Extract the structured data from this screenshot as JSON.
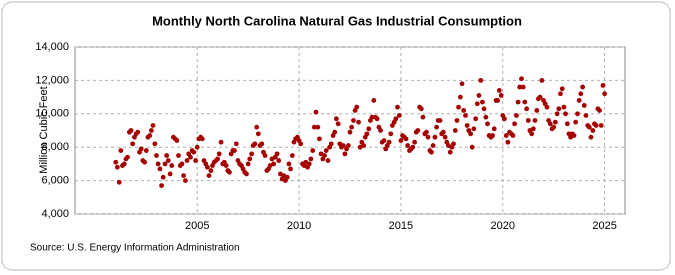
{
  "chart_data": {
    "type": "scatter",
    "title": "Monthly North Carolina Natural Gas Industrial Consumption",
    "y_label": "Million Cubic Feet",
    "source": "Source: U.S. Energy Information Administration",
    "color": "#a50000",
    "grid": true,
    "xlim": [
      1999,
      2026
    ],
    "xticks": [
      2005,
      2010,
      2015,
      2020,
      2025
    ],
    "ylim": [
      4000,
      14000
    ],
    "yticks": [
      {
        "value": 4000,
        "label": "4,000"
      },
      {
        "value": 6000,
        "label": "6,000"
      },
      {
        "value": 8000,
        "label": "8,000"
      },
      {
        "value": 10000,
        "label": "10,000"
      },
      {
        "value": 12000,
        "label": "12,000"
      },
      {
        "value": 14000,
        "label": "14,000"
      }
    ],
    "x": [
      2001,
      2001.08,
      2001.17,
      2001.25,
      2001.33,
      2001.42,
      2001.5,
      2001.58,
      2001.67,
      2001.75,
      2001.83,
      2001.92,
      2002,
      2002.08,
      2002.17,
      2002.25,
      2002.33,
      2002.42,
      2002.5,
      2002.58,
      2002.67,
      2002.75,
      2002.83,
      2002.92,
      2003,
      2003.08,
      2003.17,
      2003.25,
      2003.33,
      2003.42,
      2003.5,
      2003.58,
      2003.67,
      2003.75,
      2003.83,
      2003.92,
      2004,
      2004.08,
      2004.17,
      2004.25,
      2004.33,
      2004.42,
      2004.5,
      2004.58,
      2004.67,
      2004.75,
      2004.83,
      2004.92,
      2005,
      2005.08,
      2005.17,
      2005.25,
      2005.33,
      2005.42,
      2005.5,
      2005.58,
      2005.67,
      2005.75,
      2005.83,
      2005.92,
      2006,
      2006.08,
      2006.17,
      2006.25,
      2006.33,
      2006.42,
      2006.5,
      2006.58,
      2006.67,
      2006.75,
      2006.83,
      2006.92,
      2007,
      2007.08,
      2007.17,
      2007.25,
      2007.33,
      2007.42,
      2007.5,
      2007.58,
      2007.67,
      2007.75,
      2007.83,
      2007.92,
      2008,
      2008.08,
      2008.17,
      2008.25,
      2008.33,
      2008.42,
      2008.5,
      2008.58,
      2008.67,
      2008.75,
      2008.83,
      2008.92,
      2009,
      2009.08,
      2009.17,
      2009.25,
      2009.33,
      2009.42,
      2009.5,
      2009.58,
      2009.67,
      2009.75,
      2009.83,
      2009.92,
      2010,
      2010.08,
      2010.17,
      2010.25,
      2010.33,
      2010.42,
      2010.5,
      2010.58,
      2010.67,
      2010.75,
      2010.83,
      2010.92,
      2011,
      2011.08,
      2011.17,
      2011.25,
      2011.33,
      2011.42,
      2011.5,
      2011.58,
      2011.67,
      2011.75,
      2011.83,
      2011.92,
      2012,
      2012.08,
      2012.17,
      2012.25,
      2012.33,
      2012.42,
      2012.5,
      2012.58,
      2012.67,
      2012.75,
      2012.83,
      2012.92,
      2013,
      2013.08,
      2013.17,
      2013.25,
      2013.33,
      2013.42,
      2013.5,
      2013.58,
      2013.67,
      2013.75,
      2013.83,
      2013.92,
      2014,
      2014.08,
      2014.17,
      2014.25,
      2014.33,
      2014.42,
      2014.5,
      2014.58,
      2014.67,
      2014.75,
      2014.83,
      2014.92,
      2015,
      2015.08,
      2015.17,
      2015.25,
      2015.33,
      2015.42,
      2015.5,
      2015.58,
      2015.67,
      2015.75,
      2015.83,
      2015.92,
      2016,
      2016.08,
      2016.17,
      2016.25,
      2016.33,
      2016.42,
      2016.5,
      2016.58,
      2016.67,
      2016.75,
      2016.83,
      2016.92,
      2017,
      2017.08,
      2017.17,
      2017.25,
      2017.33,
      2017.42,
      2017.5,
      2017.58,
      2017.67,
      2017.75,
      2017.83,
      2017.92,
      2018,
      2018.08,
      2018.17,
      2018.25,
      2018.33,
      2018.42,
      2018.5,
      2018.58,
      2018.67,
      2018.75,
      2018.83,
      2018.92,
      2019,
      2019.08,
      2019.17,
      2019.25,
      2019.33,
      2019.42,
      2019.5,
      2019.58,
      2019.67,
      2019.75,
      2019.83,
      2019.92,
      2020,
      2020.08,
      2020.17,
      2020.25,
      2020.33,
      2020.42,
      2020.5,
      2020.58,
      2020.67,
      2020.75,
      2020.83,
      2020.92,
      2021,
      2021.08,
      2021.17,
      2021.25,
      2021.33,
      2021.42,
      2021.5,
      2021.58,
      2021.67,
      2021.75,
      2021.83,
      2021.92,
      2022,
      2022.08,
      2022.17,
      2022.25,
      2022.33,
      2022.42,
      2022.5,
      2022.58,
      2022.67,
      2022.75,
      2022.83,
      2022.92,
      2023,
      2023.08,
      2023.17,
      2023.25,
      2023.33,
      2023.42,
      2023.5,
      2023.58,
      2023.67,
      2023.75,
      2023.83,
      2023.92,
      2024,
      2024.08,
      2024.17,
      2024.25,
      2024.33,
      2024.42,
      2024.5,
      2024.58,
      2024.67,
      2024.75,
      2024.83,
      2024.92,
      2025
    ],
    "values": [
      7100,
      6800,
      5900,
      7800,
      6900,
      7000,
      7300,
      7400,
      8900,
      9000,
      8200,
      8600,
      8800,
      8900,
      7700,
      7900,
      7200,
      7100,
      7800,
      8600,
      8700,
      9000,
      9300,
      8200,
      7500,
      7000,
      6700,
      5700,
      6200,
      7000,
      7500,
      7200,
      6400,
      6900,
      8600,
      8500,
      8400,
      7500,
      6900,
      7000,
      6300,
      6000,
      7200,
      7600,
      7400,
      7800,
      7700,
      7200,
      8000,
      8500,
      8600,
      8500,
      7200,
      7000,
      6800,
      6300,
      6600,
      6900,
      7100,
      7200,
      7300,
      7600,
      8300,
      7000,
      7100,
      6900,
      6600,
      6500,
      7600,
      7800,
      7800,
      8200,
      7200,
      7000,
      6900,
      6700,
      6500,
      6400,
      7000,
      7300,
      7600,
      8100,
      8200,
      9200,
      8800,
      8100,
      8200,
      7700,
      7500,
      6600,
      6700,
      6900,
      7300,
      7000,
      7400,
      7600,
      7200,
      6400,
      6100,
      6300,
      6000,
      6200,
      7000,
      6700,
      7500,
      8300,
      8500,
      8600,
      8400,
      8200,
      7000,
      6900,
      7100,
      6800,
      7000,
      7300,
      7800,
      9200,
      10100,
      9200,
      8500,
      7600,
      7300,
      7500,
      7800,
      7200,
      8000,
      8200,
      8700,
      8900,
      9700,
      9400,
      8200,
      8000,
      8100,
      7600,
      7900,
      8100,
      8900,
      9200,
      9600,
      10200,
      10400,
      9500,
      8000,
      8300,
      8100,
      8600,
      8800,
      9100,
      9600,
      9800,
      10800,
      9800,
      9700,
      9200,
      9000,
      8300,
      8400,
      7900,
      8100,
      8300,
      8800,
      9300,
      9500,
      9700,
      10400,
      9900,
      8400,
      8700,
      8600,
      8500,
      8100,
      7800,
      7900,
      8000,
      8300,
      8900,
      9000,
      10400,
      10300,
      9800,
      8800,
      8900,
      8600,
      7800,
      7700,
      8100,
      8600,
      9200,
      9600,
      9600,
      8800,
      8900,
      8600,
      8300,
      8100,
      7700,
      8000,
      8200,
      9000,
      9600,
      10400,
      11000,
      11800,
      10200,
      9900,
      9300,
      9000,
      8800,
      8000,
      9100,
      9700,
      10600,
      11100,
      12000,
      10700,
      10300,
      9800,
      9400,
      8700,
      8600,
      8700,
      9100,
      10800,
      10800,
      11400,
      11100,
      9900,
      9700,
      8700,
      8300,
      8900,
      8800,
      8700,
      9400,
      9900,
      10700,
      11600,
      12100,
      11600,
      10700,
      10300,
      9600,
      9000,
      8800,
      9100,
      9600,
      10200,
      10900,
      11000,
      12000,
      10800,
      10600,
      10400,
      9600,
      9400,
      9100,
      9200,
      9500,
      10000,
      10300,
      11200,
      11500,
      10400,
      10000,
      9400,
      8800,
      8600,
      8800,
      8700,
      9500,
      10000,
      10800,
      11200,
      11600,
      10500,
      9900,
      9300,
      9200,
      8600,
      9000,
      9400,
      9300,
      10300,
      10200,
      9300,
      11700,
      11200
    ]
  }
}
